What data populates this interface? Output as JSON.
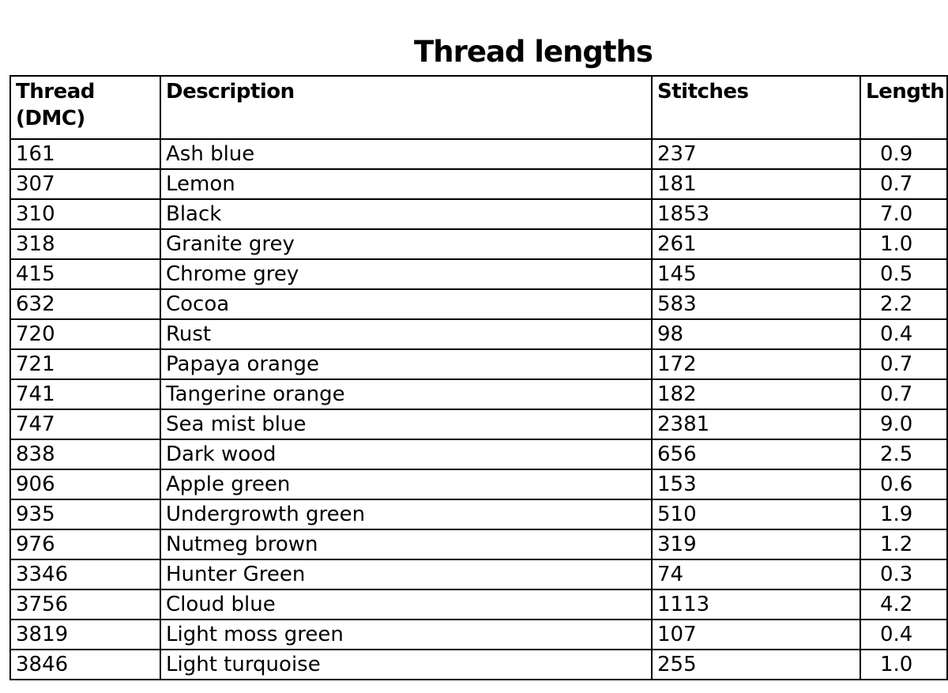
{
  "title": "Thread lengths",
  "columns": [
    "Thread (DMC)",
    "Description",
    "Stitches",
    "Length"
  ],
  "rows": [
    [
      "161",
      "Ash blue",
      "237",
      "0.9"
    ],
    [
      "307",
      "Lemon",
      "181",
      "0.7"
    ],
    [
      "310",
      "Black",
      "1853",
      "7.0"
    ],
    [
      "318",
      "Granite grey",
      "261",
      "1.0"
    ],
    [
      "415",
      "Chrome grey",
      "145",
      "0.5"
    ],
    [
      "632",
      "Cocoa",
      "583",
      "2.2"
    ],
    [
      "720",
      "Rust",
      "98",
      "0.4"
    ],
    [
      "721",
      "Papaya orange",
      "172",
      "0.7"
    ],
    [
      "741",
      "Tangerine orange",
      "182",
      "0.7"
    ],
    [
      "747",
      "Sea mist blue",
      "2381",
      "9.0"
    ],
    [
      "838",
      "Dark wood",
      "656",
      "2.5"
    ],
    [
      "906",
      "Apple green",
      "153",
      "0.6"
    ],
    [
      "935",
      "Undergrowth green",
      "510",
      "1.9"
    ],
    [
      "976",
      "Nutmeg brown",
      "319",
      "1.2"
    ],
    [
      "3346",
      "Hunter Green",
      "74",
      "0.3"
    ],
    [
      "3756",
      "Cloud blue",
      "1113",
      "4.2"
    ],
    [
      "3819",
      "Light moss green",
      "107",
      "0.4"
    ],
    [
      "3846",
      "Light turquoise",
      "255",
      "1.0"
    ]
  ]
}
